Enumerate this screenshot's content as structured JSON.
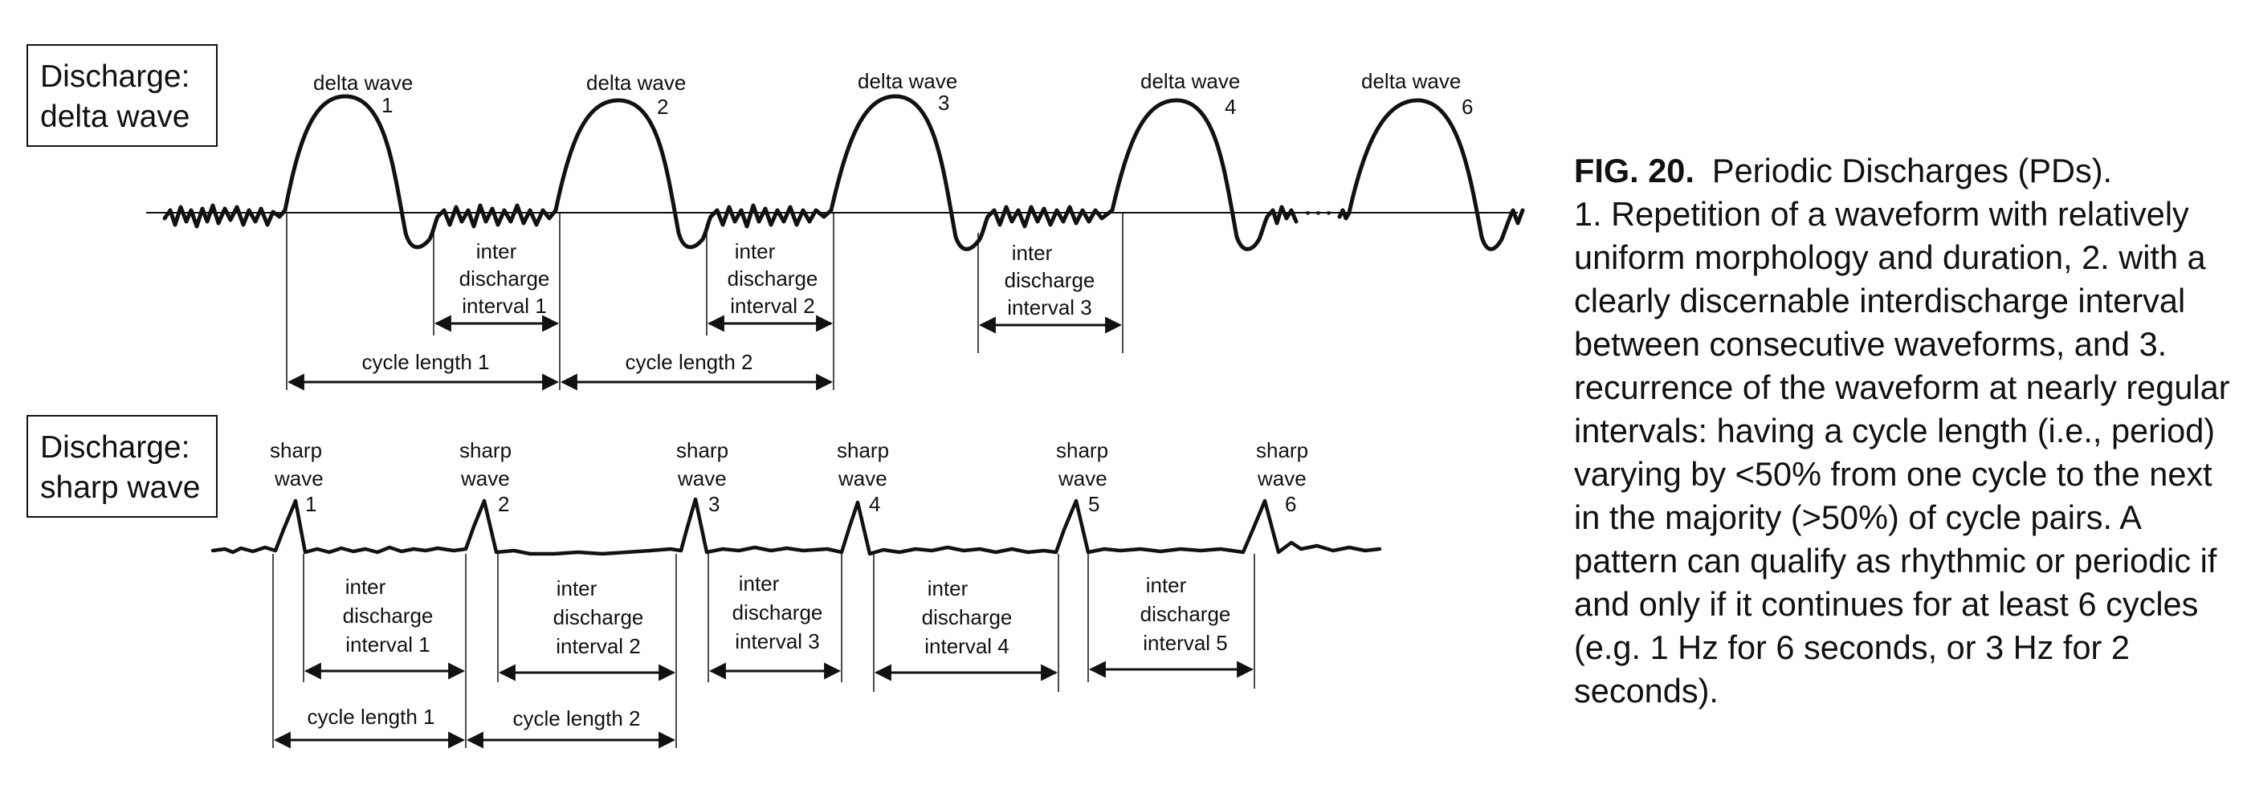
{
  "panels": {
    "delta": {
      "label_line1": "Discharge:",
      "label_line2": "delta wave",
      "waves": [
        {
          "name": "delta wave",
          "num": "1"
        },
        {
          "name": "delta wave",
          "num": "2"
        },
        {
          "name": "delta wave",
          "num": "3"
        },
        {
          "name": "delta wave",
          "num": "4"
        },
        {
          "name": "delta wave",
          "num": "6"
        }
      ],
      "ellipsis": "···",
      "intervals": [
        {
          "l1": "inter",
          "l2": "discharge",
          "l3": "interval 1"
        },
        {
          "l1": "inter",
          "l2": "discharge",
          "l3": "interval 2"
        },
        {
          "l1": "inter",
          "l2": "discharge",
          "l3": "interval 3"
        }
      ],
      "cycles": [
        "cycle length 1",
        "cycle length 2"
      ]
    },
    "sharp": {
      "label_line1": "Discharge:",
      "label_line2": "sharp wave",
      "waves": [
        {
          "l1": "sharp",
          "l2": "wave",
          "num": "1"
        },
        {
          "l1": "sharp",
          "l2": "wave",
          "num": "2"
        },
        {
          "l1": "sharp",
          "l2": "wave",
          "num": "3"
        },
        {
          "l1": "sharp",
          "l2": "wave",
          "num": "4"
        },
        {
          "l1": "sharp",
          "l2": "wave",
          "num": "5"
        },
        {
          "l1": "sharp",
          "l2": "wave",
          "num": "6"
        }
      ],
      "intervals": [
        {
          "l1": "inter",
          "l2": "discharge",
          "l3": "interval 1"
        },
        {
          "l1": "inter",
          "l2": "discharge",
          "l3": "interval 2"
        },
        {
          "l1": "inter",
          "l2": "discharge",
          "l3": "interval 3"
        },
        {
          "l1": "inter",
          "l2": "discharge",
          "l3": "interval 4"
        },
        {
          "l1": "inter",
          "l2": "discharge",
          "l3": "interval 5"
        }
      ],
      "cycles": [
        "cycle length 1",
        "cycle length 2"
      ]
    }
  },
  "caption": {
    "fig": "FIG. 20.",
    "title": "Periodic Discharges (PDs).",
    "body": "1. Repetition of a waveform with relatively uniform morphology and duration, 2. with a clearly discernable interdischarge interval between consecutive waveforms, and 3. recurrence of the waveform at nearly regular intervals: having a cycle length (i.e., period) varying by <50% from one cycle to the next in the majority (>50%) of cycle pairs. A pattern can qualify as rhythmic or periodic if and only if it continues for at least 6 cycles (e.g. 1 Hz for 6 seconds, or 3 Hz for 2 seconds)."
  }
}
